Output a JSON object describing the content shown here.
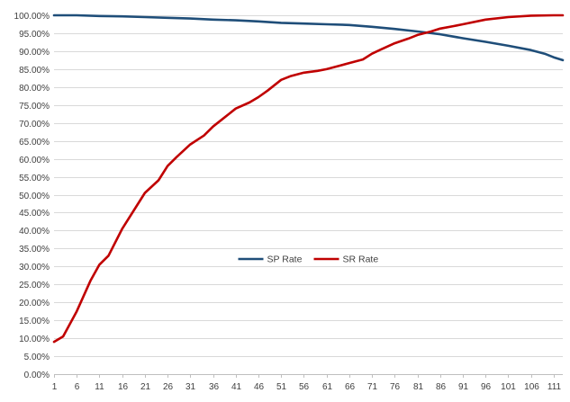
{
  "chart_data": {
    "type": "line",
    "title": "",
    "xlabel": "",
    "ylabel": "",
    "ylim": [
      0,
      1
    ],
    "ytick_step": 0.05,
    "y_format": "percent_2dp",
    "xlim": [
      1,
      113
    ],
    "xticks": [
      1,
      6,
      11,
      16,
      21,
      26,
      31,
      36,
      41,
      46,
      51,
      56,
      61,
      66,
      71,
      76,
      81,
      86,
      91,
      96,
      101,
      106,
      111
    ],
    "grid": "horizontal",
    "legend_position": "center",
    "series": [
      {
        "name": "SP Rate",
        "color": "#1f4e79",
        "points": [
          [
            1,
            1.0
          ],
          [
            6,
            1.0
          ],
          [
            11,
            0.998
          ],
          [
            16,
            0.997
          ],
          [
            21,
            0.995
          ],
          [
            26,
            0.993
          ],
          [
            31,
            0.991
          ],
          [
            36,
            0.988
          ],
          [
            41,
            0.986
          ],
          [
            46,
            0.983
          ],
          [
            51,
            0.979
          ],
          [
            56,
            0.977
          ],
          [
            61,
            0.975
          ],
          [
            66,
            0.973
          ],
          [
            71,
            0.968
          ],
          [
            76,
            0.962
          ],
          [
            81,
            0.955
          ],
          [
            86,
            0.947
          ],
          [
            91,
            0.936
          ],
          [
            96,
            0.926
          ],
          [
            101,
            0.915
          ],
          [
            106,
            0.903
          ],
          [
            109,
            0.893
          ],
          [
            111,
            0.883
          ],
          [
            113,
            0.875
          ]
        ]
      },
      {
        "name": "SR Rate",
        "color": "#c00000",
        "points": [
          [
            1,
            0.09
          ],
          [
            3,
            0.105
          ],
          [
            6,
            0.175
          ],
          [
            9,
            0.26
          ],
          [
            11,
            0.305
          ],
          [
            13,
            0.33
          ],
          [
            16,
            0.405
          ],
          [
            19,
            0.465
          ],
          [
            21,
            0.505
          ],
          [
            24,
            0.54
          ],
          [
            26,
            0.58
          ],
          [
            28,
            0.605
          ],
          [
            31,
            0.64
          ],
          [
            34,
            0.665
          ],
          [
            36,
            0.69
          ],
          [
            38,
            0.71
          ],
          [
            41,
            0.74
          ],
          [
            44,
            0.757
          ],
          [
            46,
            0.772
          ],
          [
            48,
            0.79
          ],
          [
            51,
            0.82
          ],
          [
            53,
            0.83
          ],
          [
            56,
            0.84
          ],
          [
            59,
            0.845
          ],
          [
            61,
            0.85
          ],
          [
            64,
            0.86
          ],
          [
            66,
            0.867
          ],
          [
            69,
            0.877
          ],
          [
            71,
            0.893
          ],
          [
            73,
            0.905
          ],
          [
            76,
            0.922
          ],
          [
            79,
            0.935
          ],
          [
            81,
            0.945
          ],
          [
            84,
            0.955
          ],
          [
            86,
            0.963
          ],
          [
            89,
            0.97
          ],
          [
            91,
            0.975
          ],
          [
            96,
            0.988
          ],
          [
            101,
            0.995
          ],
          [
            106,
            0.999
          ],
          [
            111,
            1.0
          ],
          [
            113,
            1.0
          ]
        ]
      }
    ]
  }
}
